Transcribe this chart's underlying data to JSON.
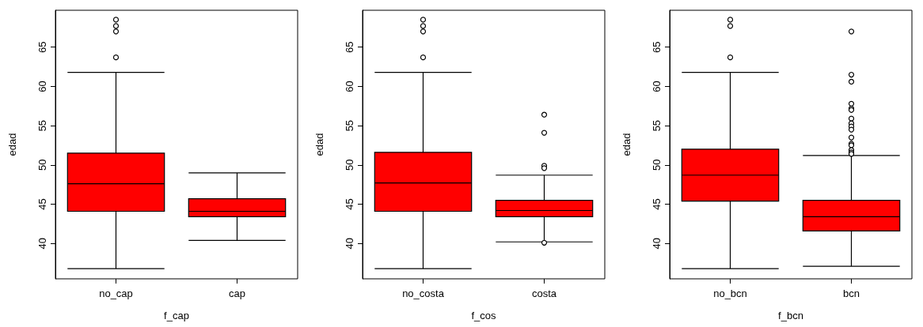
{
  "chart_data": [
    {
      "type": "box",
      "xlabel": "f_cap",
      "ylabel": "edad",
      "categories": [
        "no_cap",
        "cap"
      ],
      "color": "#ff0000",
      "ylim": [
        35.5,
        69.7
      ],
      "yticks": [
        40,
        45,
        50,
        55,
        60,
        65
      ],
      "grid": false,
      "boxes": [
        {
          "low": 36.8,
          "q1": 44.1,
          "median": 47.6,
          "q3": 51.5,
          "high": 61.8,
          "outliers": [
            68.5,
            67.7,
            67.0,
            63.7
          ]
        },
        {
          "low": 40.4,
          "q1": 43.4,
          "median": 44.1,
          "q3": 45.7,
          "high": 49.0
        }
      ]
    },
    {
      "type": "box",
      "xlabel": "f_cos",
      "ylabel": "edad",
      "categories": [
        "no_costa",
        "costa"
      ],
      "color": "#ff0000",
      "ylim": [
        35.5,
        69.7
      ],
      "yticks": [
        40,
        45,
        50,
        55,
        60,
        65
      ],
      "grid": false,
      "boxes": [
        {
          "low": 36.8,
          "q1": 44.1,
          "median": 47.7,
          "q3": 51.6,
          "high": 61.8,
          "outliers": [
            68.5,
            67.7,
            67.0,
            63.7
          ]
        },
        {
          "low": 40.2,
          "q1": 43.4,
          "median": 44.2,
          "q3": 45.5,
          "high": 48.7,
          "outliers": [
            56.4,
            54.1,
            49.9,
            49.6,
            40.1
          ]
        }
      ]
    },
    {
      "type": "box",
      "xlabel": "f_bcn",
      "ylabel": "edad",
      "categories": [
        "no_bcn",
        "bcn"
      ],
      "color": "#ff0000",
      "ylim": [
        35.5,
        69.7
      ],
      "yticks": [
        40,
        45,
        50,
        55,
        60,
        65
      ],
      "grid": false,
      "boxes": [
        {
          "low": 36.8,
          "q1": 45.4,
          "median": 48.7,
          "q3": 52.0,
          "high": 61.8,
          "outliers": [
            68.5,
            67.7,
            63.7
          ]
        },
        {
          "low": 37.1,
          "q1": 41.6,
          "median": 43.4,
          "q3": 45.5,
          "high": 51.2,
          "outliers": [
            67.0,
            61.5,
            60.6,
            57.8,
            57.2,
            57.0,
            55.9,
            55.3,
            54.9,
            54.5,
            53.5,
            52.7,
            52.5,
            51.9,
            51.6,
            51.4
          ]
        }
      ]
    }
  ]
}
